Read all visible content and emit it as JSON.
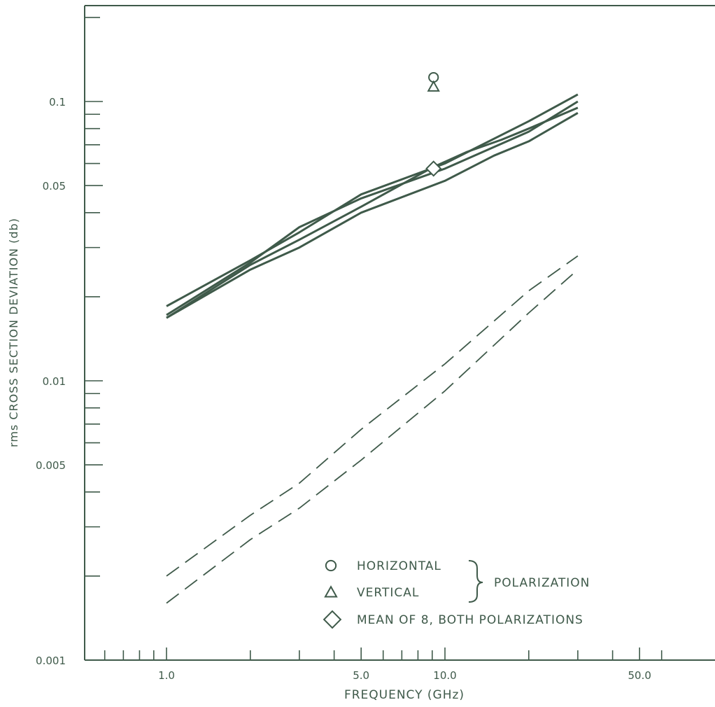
{
  "chart_data": {
    "type": "line",
    "title": "",
    "xlabel": "FREQUENCY (GHz)",
    "ylabel": "rms CROSS SECTION DEVIATION (db)",
    "x_scale": "log",
    "y_scale": "log",
    "xlim": [
      0.5,
      70
    ],
    "ylim": [
      0.001,
      0.2
    ],
    "x_tick_labels": [
      {
        "value": 1,
        "label": "1.0"
      },
      {
        "value": 5,
        "label": "5.0"
      },
      {
        "value": 10,
        "label": "10.0"
      },
      {
        "value": 50,
        "label": "50.0"
      }
    ],
    "y_tick_labels": [
      {
        "value": 0.001,
        "label": "0.001"
      },
      {
        "value": 0.005,
        "label": "0.005"
      },
      {
        "value": 0.01,
        "label": "0.01"
      },
      {
        "value": 0.05,
        "label": "0.05"
      },
      {
        "value": 0.1,
        "label": "0.1"
      }
    ],
    "grid": false,
    "colors": {
      "ink": "#3f5a4a",
      "background": "#ffffff"
    },
    "series": [
      {
        "style": "solid",
        "x": [
          1,
          2,
          3,
          5,
          10,
          20,
          30
        ],
        "y": [
          0.0185,
          0.027,
          0.034,
          0.0465,
          0.06,
          0.085,
          0.106
        ]
      },
      {
        "style": "solid",
        "x": [
          1,
          2,
          3,
          5,
          10,
          20,
          30
        ],
        "y": [
          0.0172,
          0.0265,
          0.0355,
          0.045,
          0.0575,
          0.078,
          0.1
        ]
      },
      {
        "style": "solid",
        "x": [
          1,
          2,
          3,
          5,
          9,
          12,
          16,
          20,
          30
        ],
        "y": [
          0.0168,
          0.026,
          0.032,
          0.042,
          0.058,
          0.066,
          0.073,
          0.08,
          0.095
        ]
      },
      {
        "style": "solid",
        "x": [
          1,
          2,
          3,
          5,
          10,
          15,
          20,
          30
        ],
        "y": [
          0.0168,
          0.025,
          0.03,
          0.04,
          0.052,
          0.064,
          0.072,
          0.091
        ]
      },
      {
        "style": "dashed",
        "x": [
          1,
          2,
          3,
          5,
          10,
          20,
          30
        ],
        "y": [
          0.002,
          0.0033,
          0.0043,
          0.0067,
          0.0115,
          0.021,
          0.028
        ]
      },
      {
        "style": "dashed",
        "x": [
          1,
          2,
          3,
          5,
          10,
          20,
          30
        ],
        "y": [
          0.0016,
          0.0027,
          0.0035,
          0.0052,
          0.0092,
          0.0175,
          0.025
        ]
      }
    ],
    "points": [
      {
        "marker": "circle",
        "x": 9.1,
        "y": 0.122
      },
      {
        "marker": "triangle",
        "x": 9.1,
        "y": 0.113
      },
      {
        "marker": "diamond",
        "x": 9.1,
        "y": 0.0575
      }
    ],
    "legend": {
      "placement": "bottom-right",
      "entries": [
        {
          "marker": "circle",
          "label": "HORIZONTAL"
        },
        {
          "marker": "triangle",
          "label": "VERTICAL"
        },
        {
          "marker": "diamond",
          "label": "MEAN OF 8, BOTH POLARIZATIONS"
        }
      ],
      "group_label": "POLARIZATION"
    }
  }
}
